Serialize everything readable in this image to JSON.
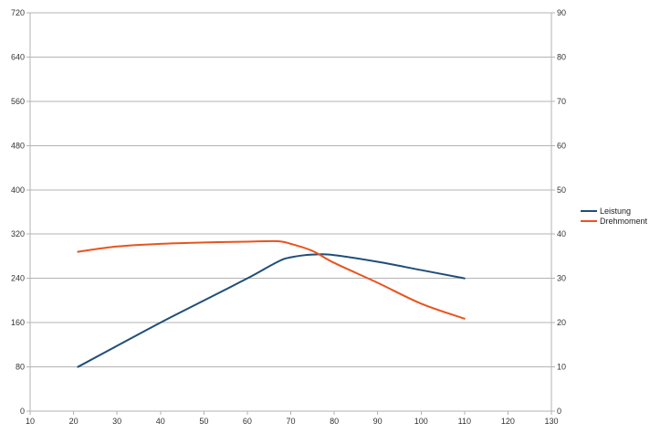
{
  "chart_data": {
    "type": "line",
    "title": "",
    "xlabel": "",
    "ylabel": "",
    "y2label": "",
    "xlim": [
      10,
      130
    ],
    "ylim": [
      0,
      720
    ],
    "y2lim": [
      0,
      90
    ],
    "x_ticks": [
      10,
      20,
      30,
      40,
      50,
      60,
      70,
      80,
      90,
      100,
      110,
      120,
      130
    ],
    "y_ticks": [
      0,
      80,
      160,
      240,
      320,
      400,
      480,
      560,
      640,
      720
    ],
    "y2_ticks": [
      0,
      10,
      20,
      30,
      40,
      50,
      60,
      70,
      80,
      90
    ],
    "grid": true,
    "legend_position": "right",
    "series": [
      {
        "name": "Leistung",
        "axis": "left",
        "color": "#1f4e79",
        "x": [
          21,
          30,
          40,
          50,
          60,
          67,
          70,
          75,
          80,
          90,
          100,
          110
        ],
        "y": [
          80,
          118,
          160,
          200,
          240,
          270,
          278,
          283,
          282,
          270,
          255,
          240
        ]
      },
      {
        "name": "Drehmoment",
        "axis": "right",
        "color": "#e8541e",
        "x": [
          21,
          30,
          40,
          50,
          60,
          67,
          70,
          75,
          80,
          90,
          100,
          110
        ],
        "y": [
          36,
          37.2,
          37.8,
          38.1,
          38.3,
          38.4,
          37.8,
          36.2,
          33.5,
          29,
          24.3,
          20.9
        ]
      }
    ]
  }
}
